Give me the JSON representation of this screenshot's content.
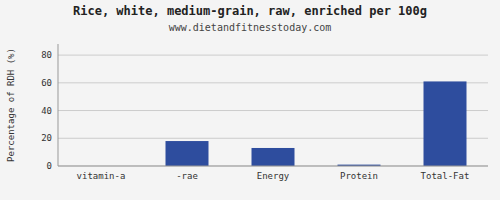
{
  "chart_data": {
    "type": "bar",
    "title": "Rice, white, medium-grain, raw, enriched per 100g",
    "subtitle": "www.dietandfitnesstoday.com",
    "ylabel": "Percentage of RDH (%)",
    "categories": [
      "vitamin-a",
      "-rae",
      "Energy",
      "Protein",
      "Total-Fat"
    ],
    "values": [
      0.0,
      18.0,
      13.0,
      1.0,
      61.0
    ],
    "color": "#2e4d9e",
    "ylim": [
      0,
      88
    ],
    "yticks": [
      0,
      20,
      40,
      60,
      80
    ],
    "grid": true
  }
}
